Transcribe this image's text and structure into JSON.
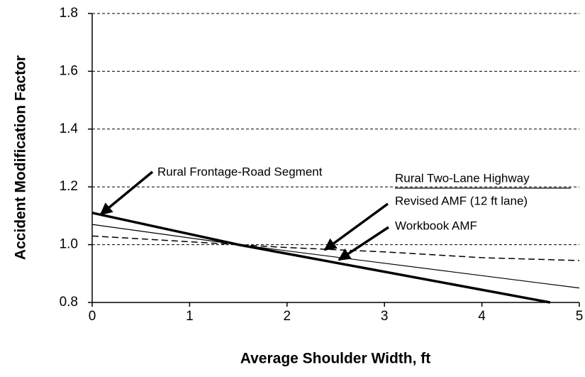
{
  "chart_data": {
    "type": "line",
    "xlabel": "Average Shoulder Width, ft",
    "ylabel": "Accident Modification Factor",
    "xlim": [
      0,
      5
    ],
    "xticks": [
      0,
      1,
      2,
      3,
      4,
      5
    ],
    "ylim": [
      0.8,
      1.8
    ],
    "yticks": [
      0.8,
      {
        "value": 1,
        "label": "1.0"
      },
      1.2,
      1.4,
      1.6,
      1.8
    ],
    "grid": true,
    "series": [
      {
        "name": "Rural Frontage-Road Segment",
        "color": "#000000",
        "x": [
          0,
          1.5,
          4.7
        ],
        "values": [
          1.11,
          1.0,
          0.8
        ]
      },
      {
        "name": "Revised AMF (12 ft lane)",
        "color": "#000000",
        "x": [
          0,
          1,
          1.5,
          2,
          3,
          4,
          5
        ],
        "values": [
          1.03,
          1.01,
          1.0,
          0.99,
          0.975,
          0.955,
          0.945
        ]
      },
      {
        "name": "Workbook AMF",
        "color": "#000000",
        "x": [
          0,
          1.5,
          5
        ],
        "values": [
          1.07,
          1.0,
          0.85
        ]
      }
    ],
    "annotations": [
      "Rural Two-Lane Highway"
    ]
  }
}
